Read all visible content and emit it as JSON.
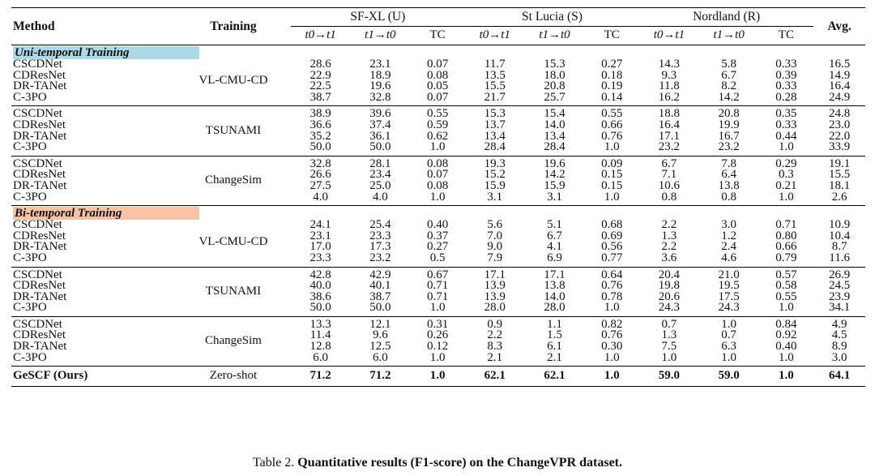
{
  "table": {
    "headers": {
      "method": "Method",
      "training": "Training",
      "groups": [
        "SF-XL (U)",
        "St Lucia (S)",
        "Nordland (R)"
      ],
      "avg": "Avg.",
      "sub": [
        "t0→t1",
        "t1→t0",
        "TC"
      ]
    },
    "sections": [
      {
        "label": "Uni-temporal Training",
        "color": "#ADD8E6",
        "blocks": [
          {
            "training": "VL-CMU-CD",
            "rows": [
              {
                "method": "CSCDNet",
                "vals": [
                  "28.6",
                  "23.1",
                  "0.07",
                  "11.7",
                  "15.3",
                  "0.27",
                  "14.3",
                  "5.8",
                  "0.33",
                  "16.5"
                ]
              },
              {
                "method": "CDResNet",
                "vals": [
                  "22.9",
                  "18.9",
                  "0.08",
                  "13.5",
                  "18.0",
                  "0.18",
                  "9.3",
                  "6.7",
                  "0.39",
                  "14.9"
                ]
              },
              {
                "method": "DR-TANet",
                "vals": [
                  "22.5",
                  "19.6",
                  "0.05",
                  "15.5",
                  "20.8",
                  "0.19",
                  "11.8",
                  "8.2",
                  "0.33",
                  "16.4"
                ]
              },
              {
                "method": "C-3PO",
                "vals": [
                  "38.7",
                  "32.8",
                  "0.07",
                  "21.7",
                  "25.7",
                  "0.14",
                  "16.2",
                  "14.2",
                  "0.28",
                  "24.9"
                ]
              }
            ]
          },
          {
            "training": "TSUNAMI",
            "rows": [
              {
                "method": "CSCDNet",
                "vals": [
                  "38.9",
                  "39.6",
                  "0.55",
                  "15.3",
                  "15.4",
                  "0.55",
                  "18.8",
                  "20.8",
                  "0.35",
                  "24.8"
                ]
              },
              {
                "method": "CDResNet",
                "vals": [
                  "36.6",
                  "37.4",
                  "0.59",
                  "13.7",
                  "14.0",
                  "0.66",
                  "16.4",
                  "19.9",
                  "0.33",
                  "23.0"
                ]
              },
              {
                "method": "DR-TANet",
                "vals": [
                  "35.2",
                  "36.1",
                  "0.62",
                  "13.4",
                  "13.4",
                  "0.76",
                  "17.1",
                  "16.7",
                  "0.44",
                  "22.0"
                ]
              },
              {
                "method": "C-3PO",
                "vals": [
                  "50.0",
                  "50.0",
                  "1.0",
                  "28.4",
                  "28.4",
                  "1.0",
                  "23.2",
                  "23.2",
                  "1.0",
                  "33.9"
                ]
              }
            ]
          },
          {
            "training": "ChangeSim",
            "rows": [
              {
                "method": "CSCDNet",
                "vals": [
                  "32.8",
                  "28.1",
                  "0.08",
                  "19.3",
                  "19.6",
                  "0.09",
                  "6.7",
                  "7.8",
                  "0.29",
                  "19.1"
                ]
              },
              {
                "method": "CDResNet",
                "vals": [
                  "26.6",
                  "23.4",
                  "0.07",
                  "15.2",
                  "14.2",
                  "0.15",
                  "7.1",
                  "6.4",
                  "0.3",
                  "15.5"
                ]
              },
              {
                "method": "DR-TANet",
                "vals": [
                  "27.5",
                  "25.0",
                  "0.08",
                  "15.9",
                  "15.9",
                  "0.15",
                  "10.6",
                  "13.8",
                  "0.21",
                  "18.1"
                ]
              },
              {
                "method": "C-3PO",
                "vals": [
                  "4.0",
                  "4.0",
                  "1.0",
                  "3.1",
                  "3.1",
                  "1.0",
                  "0.8",
                  "0.8",
                  "1.0",
                  "2.6"
                ]
              }
            ]
          }
        ]
      },
      {
        "label": "Bi-temporal Training",
        "color": "#F9C4A6",
        "blocks": [
          {
            "training": "VL-CMU-CD",
            "rows": [
              {
                "method": "CSCDNet",
                "vals": [
                  "24.1",
                  "25.4",
                  "0.40",
                  "5.6",
                  "5.1",
                  "0.68",
                  "2.2",
                  "3.0",
                  "0.71",
                  "10.9"
                ]
              },
              {
                "method": "CDResNet",
                "vals": [
                  "23.1",
                  "23.3",
                  "0.37",
                  "7.0",
                  "6.7",
                  "0.69",
                  "1.3",
                  "1.2",
                  "0.80",
                  "10.4"
                ]
              },
              {
                "method": "DR-TANet",
                "vals": [
                  "17.0",
                  "17.3",
                  "0.27",
                  "9.0",
                  "4.1",
                  "0.56",
                  "2.2",
                  "2.4",
                  "0.66",
                  "8.7"
                ]
              },
              {
                "method": "C-3PO",
                "vals": [
                  "23.3",
                  "23.2",
                  "0.5",
                  "7.9",
                  "6.9",
                  "0.77",
                  "3.6",
                  "4.6",
                  "0.79",
                  "11.6"
                ]
              }
            ]
          },
          {
            "training": "TSUNAMI",
            "rows": [
              {
                "method": "CSCDNet",
                "vals": [
                  "42.8",
                  "42.9",
                  "0.67",
                  "17.1",
                  "17.1",
                  "0.64",
                  "20.4",
                  "21.0",
                  "0.57",
                  "26.9"
                ]
              },
              {
                "method": "CDResNet",
                "vals": [
                  "40.0",
                  "40.1",
                  "0.71",
                  "13.9",
                  "13.8",
                  "0.76",
                  "19.8",
                  "19.5",
                  "0.58",
                  "24.5"
                ]
              },
              {
                "method": "DR-TANet",
                "vals": [
                  "38.6",
                  "38.7",
                  "0.71",
                  "13.9",
                  "14.0",
                  "0.78",
                  "20.6",
                  "17.5",
                  "0.55",
                  "23.9"
                ]
              },
              {
                "method": "C-3PO",
                "vals": [
                  "50.0",
                  "50.0",
                  "1.0",
                  "28.0",
                  "28.0",
                  "1.0",
                  "24.3",
                  "24.3",
                  "1.0",
                  "34.1"
                ]
              }
            ]
          },
          {
            "training": "ChangeSim",
            "rows": [
              {
                "method": "CSCDNet",
                "vals": [
                  "13.3",
                  "12.1",
                  "0.31",
                  "0.9",
                  "1.1",
                  "0.82",
                  "0.7",
                  "1.0",
                  "0.84",
                  "4.9"
                ]
              },
              {
                "method": "CDResNet",
                "vals": [
                  "11.4",
                  "9.6",
                  "0.26",
                  "2.2",
                  "1.5",
                  "0.76",
                  "1.3",
                  "0.7",
                  "0.92",
                  "4.5"
                ]
              },
              {
                "method": "DR-TANet",
                "vals": [
                  "12.8",
                  "12.5",
                  "0.12",
                  "8.3",
                  "6.1",
                  "0.30",
                  "7.5",
                  "6.3",
                  "0.40",
                  "8.9"
                ]
              },
              {
                "method": "C-3PO",
                "vals": [
                  "6.0",
                  "6.0",
                  "1.0",
                  "2.1",
                  "2.1",
                  "1.0",
                  "1.0",
                  "1.0",
                  "1.0",
                  "3.0"
                ]
              }
            ]
          }
        ]
      }
    ],
    "ours": {
      "method": "GeSCF (Ours)",
      "training": "Zero-shot",
      "vals": [
        "71.2",
        "71.2",
        "1.0",
        "62.1",
        "62.1",
        "1.0",
        "59.0",
        "59.0",
        "1.0",
        "64.1"
      ]
    }
  },
  "caption": {
    "prefix": "Table 2. ",
    "text": "Quantitative results (F1-score) on the ChangeVPR dataset."
  }
}
